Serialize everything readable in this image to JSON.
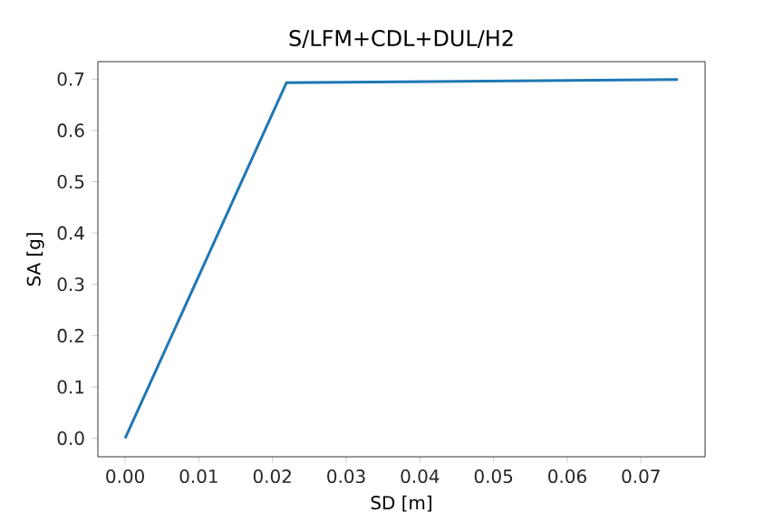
{
  "chart_data": {
    "type": "line",
    "title": "S/LFM+CDL+DUL/H2",
    "xlabel": "SD [m]",
    "ylabel": "SA [g]",
    "x": [
      0,
      0.0219,
      0.075
    ],
    "series": [
      {
        "color": "#1f77b4",
        "values": [
          0,
          0.693,
          0.699
        ]
      }
    ],
    "xlim": [
      -0.0037,
      0.0787
    ],
    "ylim": [
      -0.036,
      0.734
    ],
    "xticks": [
      {
        "value": 0,
        "label": "0.00"
      },
      0.01,
      0.02,
      0.03,
      0.04,
      0.05,
      0.06,
      0.07
    ],
    "yticks": [
      {
        "value": 0,
        "label": "0.0"
      },
      0.1,
      0.2,
      0.3,
      0.4,
      0.5,
      0.6,
      0.7
    ],
    "marker": "none",
    "line_style": "solid"
  }
}
